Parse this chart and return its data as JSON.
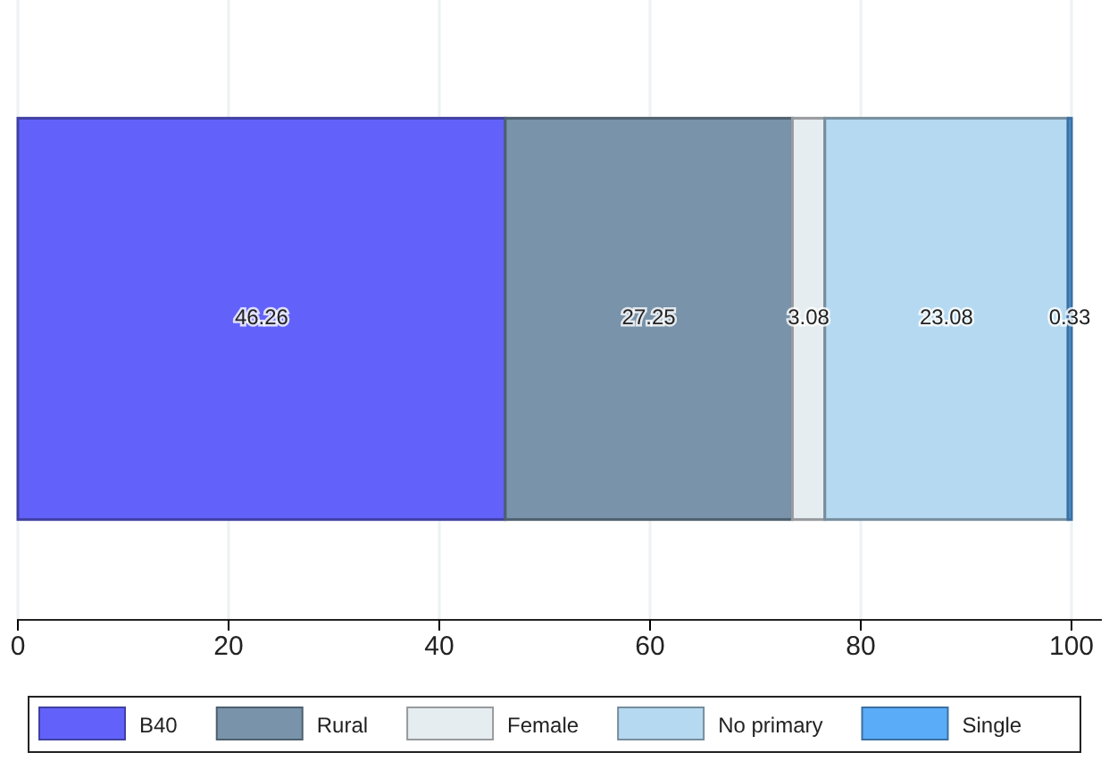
{
  "chart_data": {
    "type": "bar",
    "orientation": "horizontal",
    "stacked": true,
    "categories": [
      null
    ],
    "series": [
      {
        "name": "B40",
        "color": "#6262fa",
        "values": [
          46.26
        ]
      },
      {
        "name": "Rural",
        "color": "#7893aa",
        "values": [
          27.25
        ]
      },
      {
        "name": "Female",
        "color": "#e6edf1",
        "values": [
          3.08
        ]
      },
      {
        "name": "No primary",
        "color": "#b5d9f1",
        "values": [
          23.08
        ]
      },
      {
        "name": "Single",
        "color": "#5aacf8",
        "values": [
          0.33
        ]
      }
    ],
    "xlim": [
      0,
      100
    ],
    "xticks": [
      0,
      20,
      40,
      60,
      80,
      100
    ],
    "grid": "x",
    "legend": "bottom",
    "data_labels": true
  }
}
